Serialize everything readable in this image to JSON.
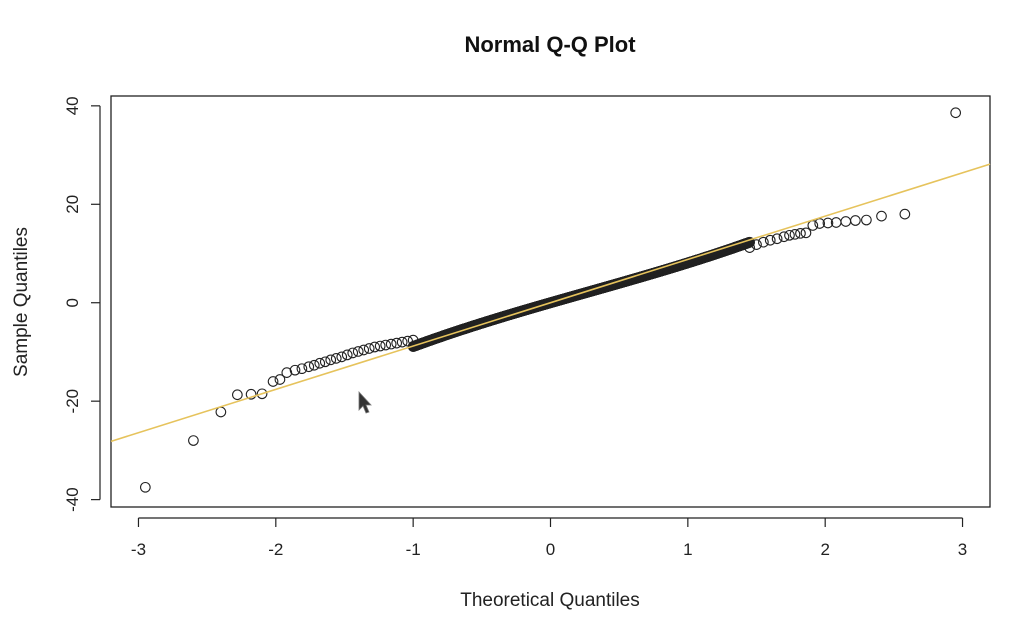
{
  "chart_data": {
    "type": "scatter",
    "title": "Normal Q-Q Plot",
    "xlabel": "Theoretical Quantiles",
    "ylabel": "Sample Quantiles",
    "xlim": [
      -3.2,
      3.2
    ],
    "ylim": [
      -41.5,
      42
    ],
    "xticks": [
      -3,
      -2,
      -1,
      0,
      1,
      2,
      3
    ],
    "xtick_labels": [
      "-3",
      "-2",
      "-1",
      "0",
      "1",
      "2",
      "3"
    ],
    "yticks": [
      -40,
      -20,
      0,
      20,
      40
    ],
    "ytick_labels": [
      "-40",
      "-20",
      "0",
      "20",
      "40"
    ],
    "grid": false,
    "reference_line": {
      "intercept": 0,
      "slope": 8.8,
      "color": "#e6c35c"
    },
    "point_color": "#222222",
    "tail_points": [
      [
        -2.95,
        -37.5
      ],
      [
        -2.6,
        -28.0
      ],
      [
        -2.4,
        -22.2
      ],
      [
        -2.28,
        -18.7
      ],
      [
        -2.18,
        -18.6
      ],
      [
        -2.1,
        -18.5
      ],
      [
        -2.02,
        -16.0
      ],
      [
        -1.97,
        -15.6
      ],
      [
        -1.92,
        -14.2
      ],
      [
        -1.86,
        -13.7
      ],
      [
        -1.81,
        -13.4
      ],
      [
        -1.76,
        -13.0
      ],
      [
        -1.72,
        -12.7
      ],
      [
        -1.68,
        -12.3
      ],
      [
        -1.64,
        -12.0
      ],
      [
        -1.6,
        -11.6
      ],
      [
        -1.56,
        -11.3
      ],
      [
        -1.52,
        -11.0
      ],
      [
        -1.48,
        -10.6
      ],
      [
        -1.44,
        -10.2
      ],
      [
        -1.4,
        -9.9
      ],
      [
        -1.36,
        -9.6
      ],
      [
        -1.32,
        -9.3
      ],
      [
        -1.28,
        -9.0
      ],
      [
        -1.24,
        -8.8
      ],
      [
        -1.2,
        -8.6
      ],
      [
        -1.16,
        -8.4
      ],
      [
        -1.12,
        -8.2
      ],
      [
        -1.08,
        -8.0
      ],
      [
        -1.04,
        -7.8
      ],
      [
        -1.0,
        -7.6
      ],
      [
        1.45,
        11.2
      ],
      [
        1.5,
        11.8
      ],
      [
        1.55,
        12.3
      ],
      [
        1.6,
        12.7
      ],
      [
        1.65,
        13.0
      ],
      [
        1.7,
        13.4
      ],
      [
        1.74,
        13.7
      ],
      [
        1.78,
        13.9
      ],
      [
        1.82,
        14.1
      ],
      [
        1.86,
        14.2
      ],
      [
        1.91,
        15.7
      ],
      [
        1.96,
        16.1
      ],
      [
        2.02,
        16.2
      ],
      [
        2.08,
        16.3
      ],
      [
        2.15,
        16.5
      ],
      [
        2.22,
        16.7
      ],
      [
        2.3,
        16.8
      ],
      [
        2.41,
        17.6
      ],
      [
        2.58,
        18.0
      ],
      [
        2.95,
        38.6
      ]
    ],
    "body_range": [
      -1.0,
      1.45
    ],
    "body_points_count": 900,
    "body_function": "sample = 8.0*q - 0.4*q^2 + 0.5*q^3 (approx, estimated from plot)"
  }
}
